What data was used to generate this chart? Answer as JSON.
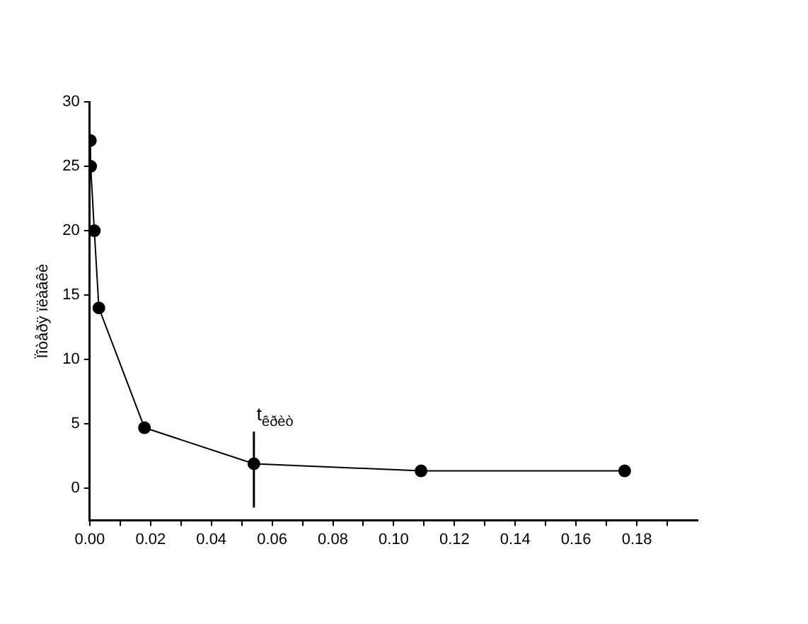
{
  "chart_data": {
    "type": "line",
    "ylabel": "Ïîòåðÿ ïëàâêè",
    "x": [
      0.0002,
      0.0003,
      0.0015,
      0.003,
      0.018,
      0.054,
      0.109,
      0.176
    ],
    "series": [
      {
        "color": "#000000",
        "values": [
          27,
          25,
          20,
          14,
          4.7,
          1.9,
          1.35,
          1.35
        ],
        "errors": [
          null,
          null,
          null,
          null,
          null,
          [
            -1.5,
            4.4
          ],
          null,
          null
        ]
      }
    ],
    "marker": "circle",
    "line_style": "solid",
    "grid": false,
    "legend": false,
    "xlim": [
      0,
      0.2
    ],
    "xticks": [
      {
        "value": 0,
        "label": "0.00"
      },
      {
        "value": 0.01,
        "label": null
      },
      {
        "value": 0.02,
        "label": "0.02"
      },
      {
        "value": 0.03,
        "label": null
      },
      {
        "value": 0.04,
        "label": "0.04"
      },
      {
        "value": 0.05,
        "label": null
      },
      {
        "value": 0.06,
        "label": "0.06"
      },
      {
        "value": 0.07,
        "label": null
      },
      {
        "value": 0.08,
        "label": "0.08"
      },
      {
        "value": 0.09,
        "label": null
      },
      {
        "value": 0.1,
        "label": "0.10"
      },
      {
        "value": 0.11,
        "label": null
      },
      {
        "value": 0.12,
        "label": "0.12"
      },
      {
        "value": 0.13,
        "label": null
      },
      {
        "value": 0.14,
        "label": "0.14"
      },
      {
        "value": 0.15,
        "label": null
      },
      {
        "value": 0.16,
        "label": "0.16"
      },
      {
        "value": 0.17,
        "label": null
      },
      {
        "value": 0.18,
        "label": "0.18"
      },
      {
        "value": 0.19,
        "label": null
      }
    ],
    "ylim": [
      -2.5,
      30
    ],
    "yticks": [
      0,
      5,
      10,
      15,
      20,
      25,
      30
    ],
    "annotations": [
      {
        "text": "t$_{êðèò}$",
        "x": 0.054,
        "y": 4.4
      }
    ]
  }
}
